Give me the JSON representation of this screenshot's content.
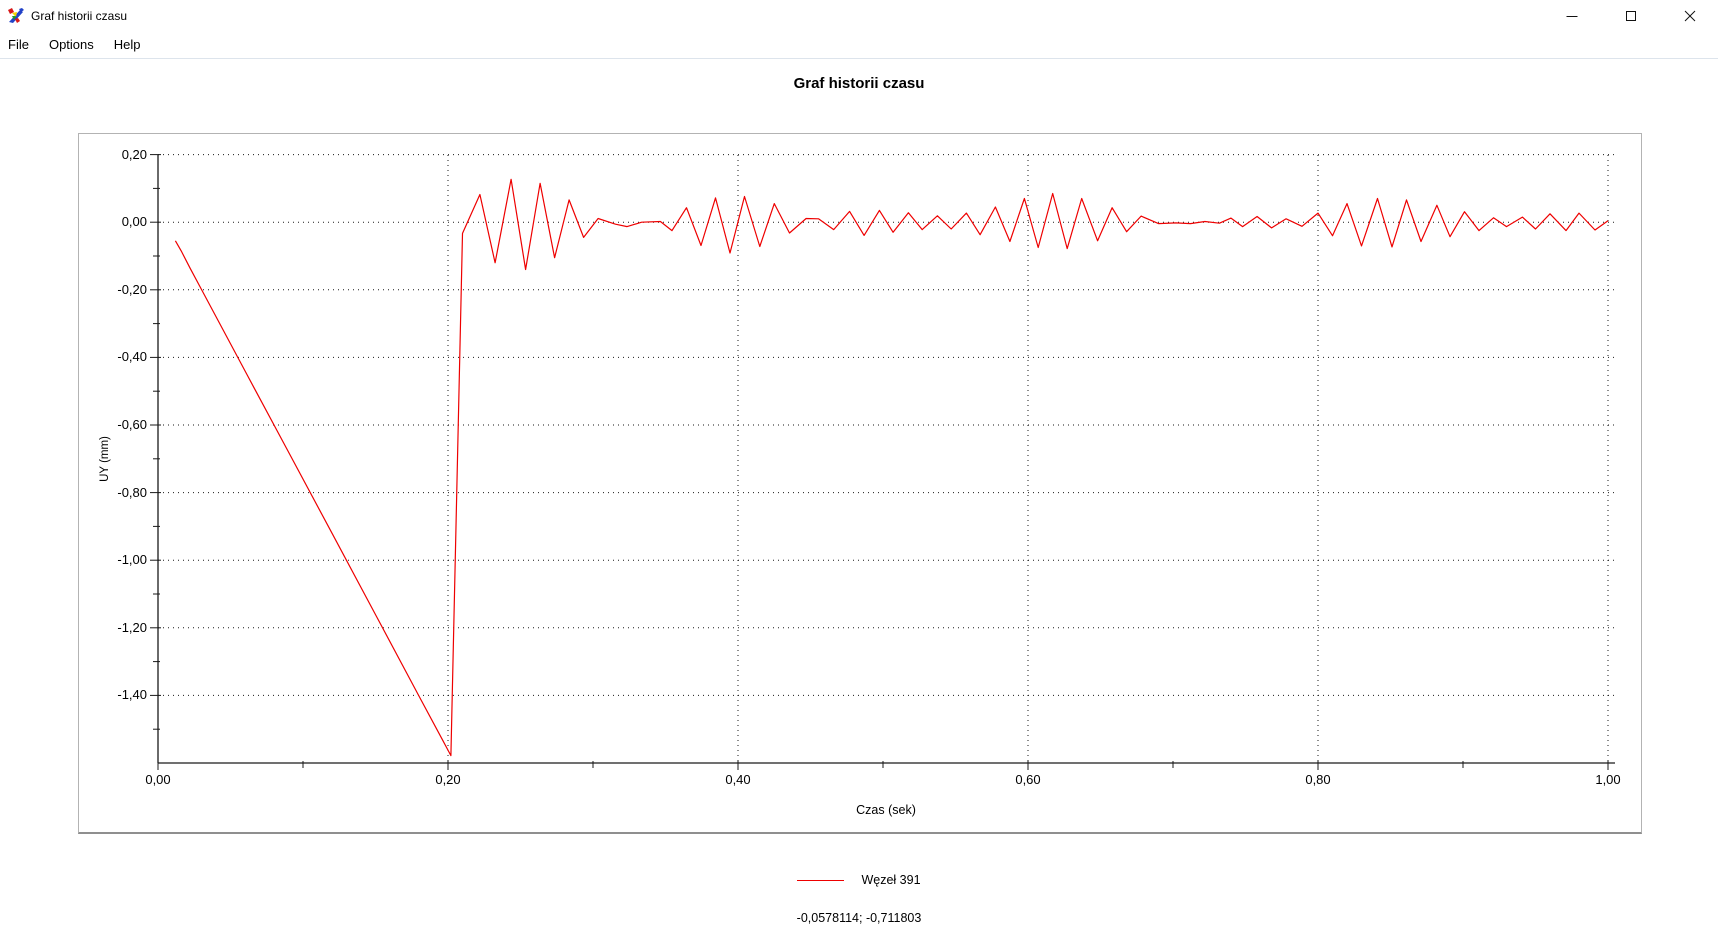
{
  "window": {
    "title": "Graf historii czasu"
  },
  "menu": {
    "items": [
      "File",
      "Options",
      "Help"
    ]
  },
  "status": {
    "coordinates": "-0,0578114; -0,711803"
  },
  "chart_data": {
    "type": "line",
    "title": "Graf historii czasu",
    "xlabel": "Czas (sek)",
    "ylabel": "UY (mm)",
    "xlim": [
      0.0,
      1.0
    ],
    "ylim": [
      -1.6,
      0.2
    ],
    "grid": "dotted lines at major ticks, both axes",
    "x_ticks": {
      "values": [
        0.0,
        0.2,
        0.4,
        0.6,
        0.8,
        1.0
      ],
      "labels": [
        "0,00",
        "0,20",
        "0,40",
        "0,60",
        "0,80",
        "1,00"
      ]
    },
    "x_minor_ticks": [
      0.1,
      0.3,
      0.5,
      0.7,
      0.9
    ],
    "y_ticks": {
      "values": [
        0.2,
        0.0,
        -0.2,
        -0.4,
        -0.6,
        -0.8,
        -1.0,
        -1.2,
        -1.4
      ],
      "labels": [
        "0,20",
        "0,00",
        "-0,20",
        "-0,40",
        "-0,60",
        "-0,80",
        "-1,00",
        "-1,20",
        "-1,40"
      ]
    },
    "y_minor_ticks": [
      0.1,
      -0.1,
      -0.3,
      -0.5,
      -0.7,
      -0.9,
      -1.1,
      -1.3,
      -1.5
    ],
    "legend": {
      "position": "bottom-center",
      "entries": [
        {
          "label": "Węzeł 391",
          "color": "#ee0000"
        }
      ]
    },
    "series": [
      {
        "name": "Węzeł 391",
        "color": "#ee0000",
        "points": [
          [
            0.012,
            -0.055
          ],
          [
            0.016,
            -0.085
          ],
          [
            0.022,
            -0.135
          ],
          [
            0.03,
            -0.199
          ],
          [
            0.06,
            -0.44
          ],
          [
            0.09,
            -0.68
          ],
          [
            0.12,
            -0.92
          ],
          [
            0.15,
            -1.161
          ],
          [
            0.18,
            -1.402
          ],
          [
            0.196,
            -1.53
          ],
          [
            0.202,
            -1.578
          ],
          [
            0.21,
            -0.033
          ],
          [
            0.222,
            0.082
          ],
          [
            0.2325,
            -0.12
          ],
          [
            0.2435,
            0.127
          ],
          [
            0.2535,
            -0.14
          ],
          [
            0.2635,
            0.115
          ],
          [
            0.2735,
            -0.105
          ],
          [
            0.2835,
            0.066
          ],
          [
            0.2935,
            -0.045
          ],
          [
            0.3035,
            0.011
          ],
          [
            0.3155,
            -0.006
          ],
          [
            0.3235,
            -0.013
          ],
          [
            0.3335,
            0.0
          ],
          [
            0.3465,
            0.002
          ],
          [
            0.3545,
            -0.025
          ],
          [
            0.3645,
            0.043
          ],
          [
            0.3745,
            -0.069
          ],
          [
            0.3845,
            0.072
          ],
          [
            0.3945,
            -0.091
          ],
          [
            0.4045,
            0.076
          ],
          [
            0.415,
            -0.072
          ],
          [
            0.425,
            0.055
          ],
          [
            0.4355,
            -0.032
          ],
          [
            0.447,
            0.011
          ],
          [
            0.4555,
            0.01
          ],
          [
            0.466,
            -0.022
          ],
          [
            0.477,
            0.032
          ],
          [
            0.487,
            -0.039
          ],
          [
            0.4975,
            0.035
          ],
          [
            0.507,
            -0.03
          ],
          [
            0.5175,
            0.028
          ],
          [
            0.527,
            -0.022
          ],
          [
            0.5375,
            0.019
          ],
          [
            0.547,
            -0.02
          ],
          [
            0.5575,
            0.027
          ],
          [
            0.567,
            -0.037
          ],
          [
            0.5775,
            0.045
          ],
          [
            0.5875,
            -0.057
          ],
          [
            0.5975,
            0.07
          ],
          [
            0.607,
            -0.075
          ],
          [
            0.617,
            0.085
          ],
          [
            0.627,
            -0.078
          ],
          [
            0.637,
            0.07
          ],
          [
            0.648,
            -0.055
          ],
          [
            0.658,
            0.043
          ],
          [
            0.668,
            -0.028
          ],
          [
            0.678,
            0.018
          ],
          [
            0.69,
            -0.004
          ],
          [
            0.702,
            -0.002
          ],
          [
            0.712,
            -0.004
          ],
          [
            0.722,
            0.002
          ],
          [
            0.732,
            -0.003
          ],
          [
            0.74,
            0.012
          ],
          [
            0.748,
            -0.013
          ],
          [
            0.758,
            0.017
          ],
          [
            0.768,
            -0.017
          ],
          [
            0.778,
            0.01
          ],
          [
            0.789,
            -0.012
          ],
          [
            0.8,
            0.027
          ],
          [
            0.81,
            -0.04
          ],
          [
            0.82,
            0.055
          ],
          [
            0.83,
            -0.07
          ],
          [
            0.841,
            0.07
          ],
          [
            0.851,
            -0.073
          ],
          [
            0.861,
            0.066
          ],
          [
            0.871,
            -0.057
          ],
          [
            0.882,
            0.05
          ],
          [
            0.891,
            -0.043
          ],
          [
            0.901,
            0.031
          ],
          [
            0.911,
            -0.025
          ],
          [
            0.921,
            0.013
          ],
          [
            0.93,
            -0.013
          ],
          [
            0.941,
            0.015
          ],
          [
            0.95,
            -0.02
          ],
          [
            0.96,
            0.025
          ],
          [
            0.971,
            -0.025
          ],
          [
            0.98,
            0.027
          ],
          [
            0.991,
            -0.023
          ],
          [
            1.0,
            0.004
          ]
        ]
      }
    ]
  }
}
